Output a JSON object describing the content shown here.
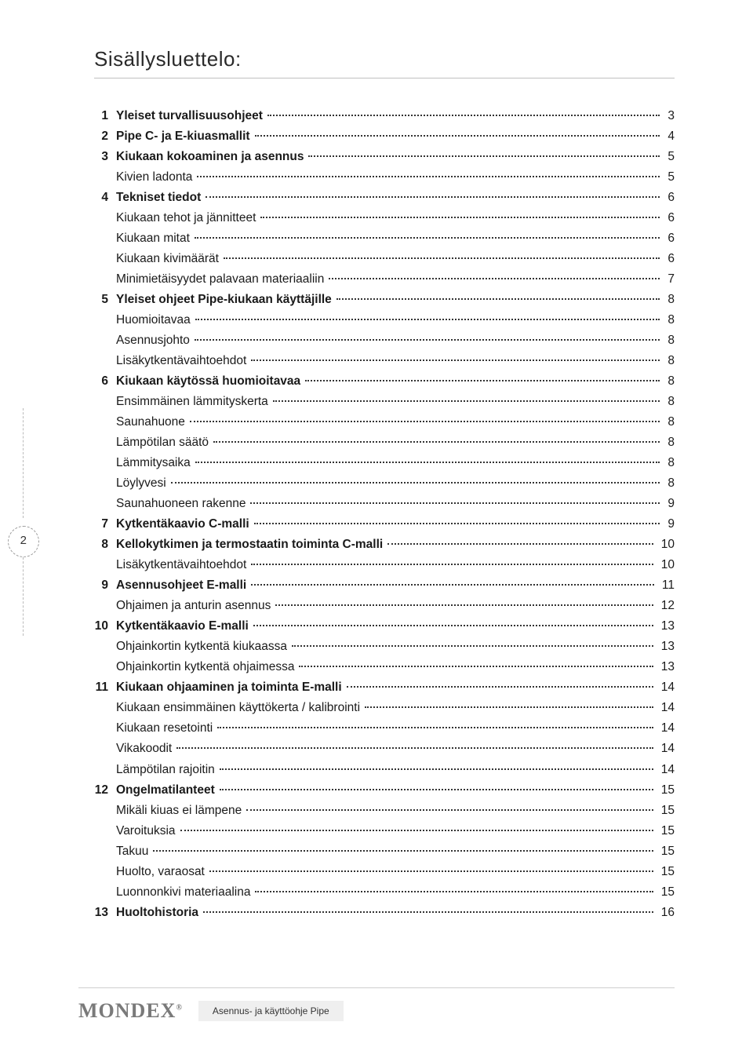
{
  "title": "Sisällysluettelo:",
  "side_page_number": "2",
  "footer": {
    "logo_text": "MONDEX",
    "logo_reg": "®",
    "caption": "Asennus- ja käyttöohje Pipe"
  },
  "toc": [
    {
      "num": "1",
      "label": "Yleiset turvallisuusohjeet",
      "page": "3",
      "bold": true
    },
    {
      "num": "2",
      "label": "Pipe C- ja E-kiuasmallit",
      "page": "4",
      "bold": true
    },
    {
      "num": "3",
      "label": "Kiukaan kokoaminen ja asennus",
      "page": "5",
      "bold": true
    },
    {
      "num": "",
      "label": "Kivien ladonta",
      "page": "5"
    },
    {
      "num": "4",
      "label": "Tekniset tiedot",
      "page": "6",
      "bold": true
    },
    {
      "num": "",
      "label": "Kiukaan tehot ja jännitteet",
      "page": "6"
    },
    {
      "num": "",
      "label": "Kiukaan mitat",
      "page": "6"
    },
    {
      "num": "",
      "label": "Kiukaan kivimäärät",
      "page": "6"
    },
    {
      "num": "",
      "label": "Minimietäisyydet palavaan materiaaliin",
      "page": "7"
    },
    {
      "num": "5",
      "label": "Yleiset ohjeet Pipe-kiukaan käyttäjille",
      "page": "8",
      "bold": true
    },
    {
      "num": "",
      "label": "Huomioitavaa",
      "page": "8"
    },
    {
      "num": "",
      "label": "Asennusjohto",
      "page": "8"
    },
    {
      "num": "",
      "label": "Lisäkytkentävaihtoehdot",
      "page": "8"
    },
    {
      "num": "6",
      "label": "Kiukaan käytössä huomioitavaa",
      "page": "8",
      "bold": true
    },
    {
      "num": "",
      "label": "Ensimmäinen lämmityskerta",
      "page": "8"
    },
    {
      "num": "",
      "label": "Saunahuone",
      "page": "8"
    },
    {
      "num": "",
      "label": "Lämpötilan säätö",
      "page": "8"
    },
    {
      "num": "",
      "label": "Lämmitysaika",
      "page": "8"
    },
    {
      "num": "",
      "label": "Löylyvesi",
      "page": "8"
    },
    {
      "num": "",
      "label": "Saunahuoneen rakenne",
      "page": "9"
    },
    {
      "num": "7",
      "label": "Kytkentäkaavio C-malli",
      "page": "9",
      "bold": true
    },
    {
      "num": "8",
      "label": "Kellokytkimen ja termostaatin toiminta C-malli",
      "page": "10",
      "bold": true
    },
    {
      "num": "",
      "label": "Lisäkytkentävaihtoehdot",
      "page": "10"
    },
    {
      "num": "9",
      "label": "Asennusohjeet E-malli",
      "page": "11",
      "bold": true
    },
    {
      "num": "",
      "label": "Ohjaimen ja anturin asennus",
      "page": "12"
    },
    {
      "num": "10",
      "label": "Kytkentäkaavio E-malli",
      "page": "13",
      "bold": true
    },
    {
      "num": "",
      "label": "Ohjainkortin kytkentä kiukaassa",
      "page": "13"
    },
    {
      "num": "",
      "label": "Ohjainkortin kytkentä ohjaimessa",
      "page": "13"
    },
    {
      "num": "11",
      "label": "Kiukaan ohjaaminen ja toiminta E-malli",
      "page": "14",
      "bold": true
    },
    {
      "num": "",
      "label": "Kiukaan ensimmäinen käyttökerta / kalibrointi",
      "page": "14"
    },
    {
      "num": "",
      "label": "Kiukaan resetointi",
      "page": "14"
    },
    {
      "num": "",
      "label": "Vikakoodit",
      "page": "14"
    },
    {
      "num": "",
      "label": "Lämpötilan rajoitin",
      "page": "14"
    },
    {
      "num": "12",
      "label": "Ongelmatilanteet",
      "page": "15",
      "bold": true
    },
    {
      "num": "",
      "label": "Mikäli kiuas ei lämpene",
      "page": "15"
    },
    {
      "num": "",
      "label": "Varoituksia",
      "page": "15"
    },
    {
      "num": "",
      "label": "Takuu",
      "page": "15"
    },
    {
      "num": "",
      "label": "Huolto, varaosat",
      "page": "15"
    },
    {
      "num": "",
      "label": "Luonnonkivi materiaalina",
      "page": "15"
    },
    {
      "num": "13",
      "label": "Huoltohistoria",
      "page": "16",
      "bold": true
    }
  ]
}
